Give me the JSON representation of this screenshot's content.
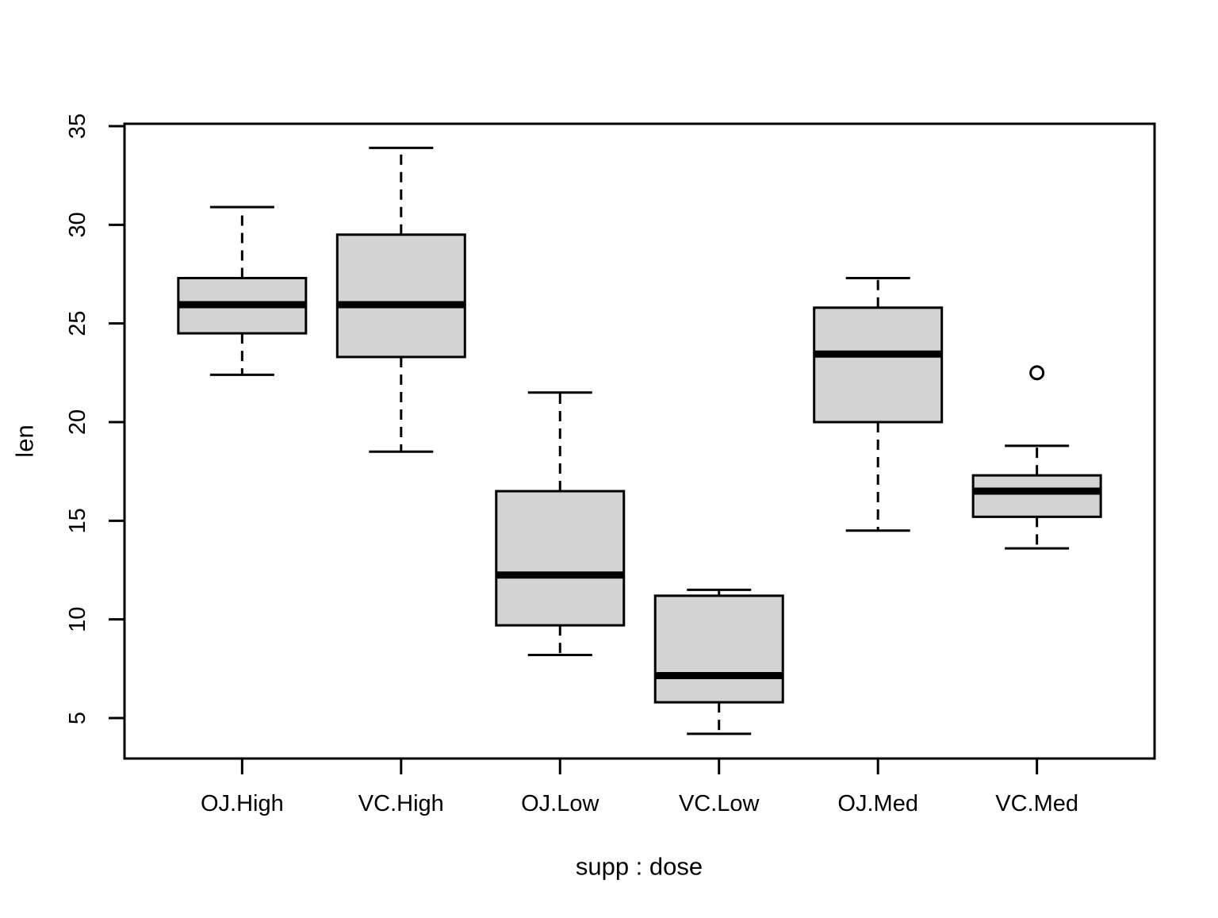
{
  "chart_data": {
    "type": "boxplot",
    "title": "",
    "xlabel": "supp : dose",
    "ylabel": "len",
    "categories": [
      "OJ.High",
      "VC.High",
      "OJ.Low",
      "VC.Low",
      "OJ.Med",
      "VC.Med"
    ],
    "y_ticks": [
      5,
      10,
      15,
      20,
      25,
      30,
      35
    ],
    "ylim": [
      2.95,
      35.12
    ],
    "xlim": [
      0.26,
      6.74
    ],
    "grid": false,
    "legend": null,
    "colors": {
      "box_fill": "#d3d3d3",
      "line": "#000000",
      "background": "#ffffff"
    },
    "boxes": [
      {
        "category": "OJ.High",
        "pos": 1,
        "whisker_low": 22.4,
        "q1": 24.5,
        "median": 25.95,
        "q3": 27.3,
        "whisker_high": 30.9,
        "outliers": []
      },
      {
        "category": "VC.High",
        "pos": 2,
        "whisker_low": 18.5,
        "q1": 23.3,
        "median": 25.95,
        "q3": 29.5,
        "whisker_high": 33.9,
        "outliers": []
      },
      {
        "category": "OJ.Low",
        "pos": 3,
        "whisker_low": 8.2,
        "q1": 9.7,
        "median": 12.25,
        "q3": 16.5,
        "whisker_high": 21.5,
        "outliers": []
      },
      {
        "category": "VC.Low",
        "pos": 4,
        "whisker_low": 4.2,
        "q1": 5.8,
        "median": 7.15,
        "q3": 11.2,
        "whisker_high": 11.5,
        "outliers": []
      },
      {
        "category": "OJ.Med",
        "pos": 5,
        "whisker_low": 14.5,
        "q1": 20.0,
        "median": 23.45,
        "q3": 25.8,
        "whisker_high": 27.3,
        "outliers": []
      },
      {
        "category": "VC.Med",
        "pos": 6,
        "whisker_low": 13.6,
        "q1": 15.2,
        "median": 16.5,
        "q3": 17.3,
        "whisker_high": 18.8,
        "outliers": [
          22.5
        ]
      }
    ]
  }
}
